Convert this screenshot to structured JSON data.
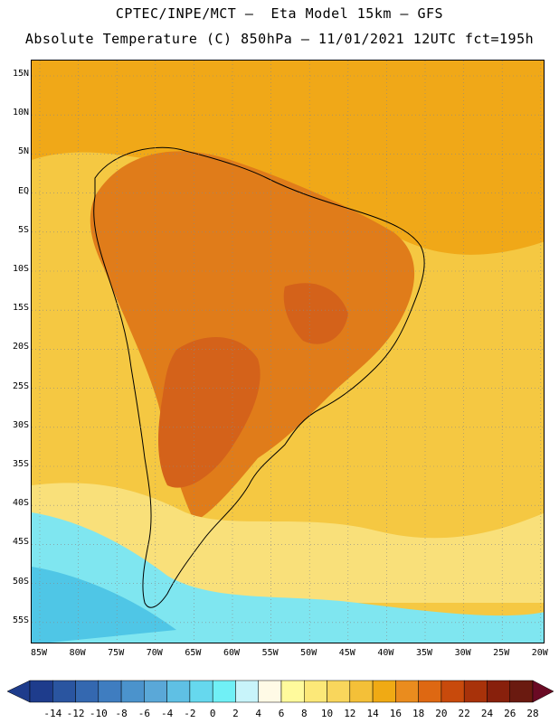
{
  "header": {
    "line1": "CPTEC/INPE/MCT –  Eta Model 15km – GFS",
    "line2": "Absolute Temperature (C) 850hPa – 11/01/2021 12UTC fct=195h"
  },
  "map": {
    "lat_labels": [
      "15N",
      "10N",
      "5N",
      "EQ",
      "5S",
      "10S",
      "15S",
      "20S",
      "25S",
      "30S",
      "35S",
      "40S",
      "45S",
      "50S",
      "55S"
    ],
    "lon_labels": [
      "85W",
      "80W",
      "75W",
      "70W",
      "65W",
      "60W",
      "55W",
      "50W",
      "45W",
      "40W",
      "35W",
      "30W",
      "25W",
      "20W"
    ],
    "regions": {
      "ocean_background": "#f5c842",
      "tropical_warm": "#f0a818",
      "continental_hot": "#e07c1a",
      "andes_hot": "#d4621a",
      "patagonia_cool": "#f9e07a",
      "southern_ocean_cool": "#7fe6f0",
      "antarctic_cold": "#4fc6e6"
    }
  },
  "colorbar": {
    "labels": [
      "-14",
      "-12",
      "-10",
      "-8",
      "-6",
      "-4",
      "-2",
      "0",
      "2",
      "4",
      "6",
      "8",
      "10",
      "12",
      "14",
      "16",
      "18",
      "20",
      "22",
      "24",
      "26",
      "28"
    ],
    "colors": [
      "#1e3c8c",
      "#2a55a0",
      "#3468b0",
      "#3f7dc0",
      "#4b93cc",
      "#5aa8d8",
      "#5fc0e4",
      "#66d8ee",
      "#70f0f6",
      "#c8f4fa",
      "#fffae6",
      "#fffa9c",
      "#fce878",
      "#f9d65c",
      "#f4c038",
      "#f0aa14",
      "#ea8c1e",
      "#de6812",
      "#c84a0c",
      "#a8320a",
      "#88200c",
      "#6a1a10"
    ],
    "left_arrow_color": "#1e3c8c",
    "right_arrow_color": "#6a0a24"
  }
}
